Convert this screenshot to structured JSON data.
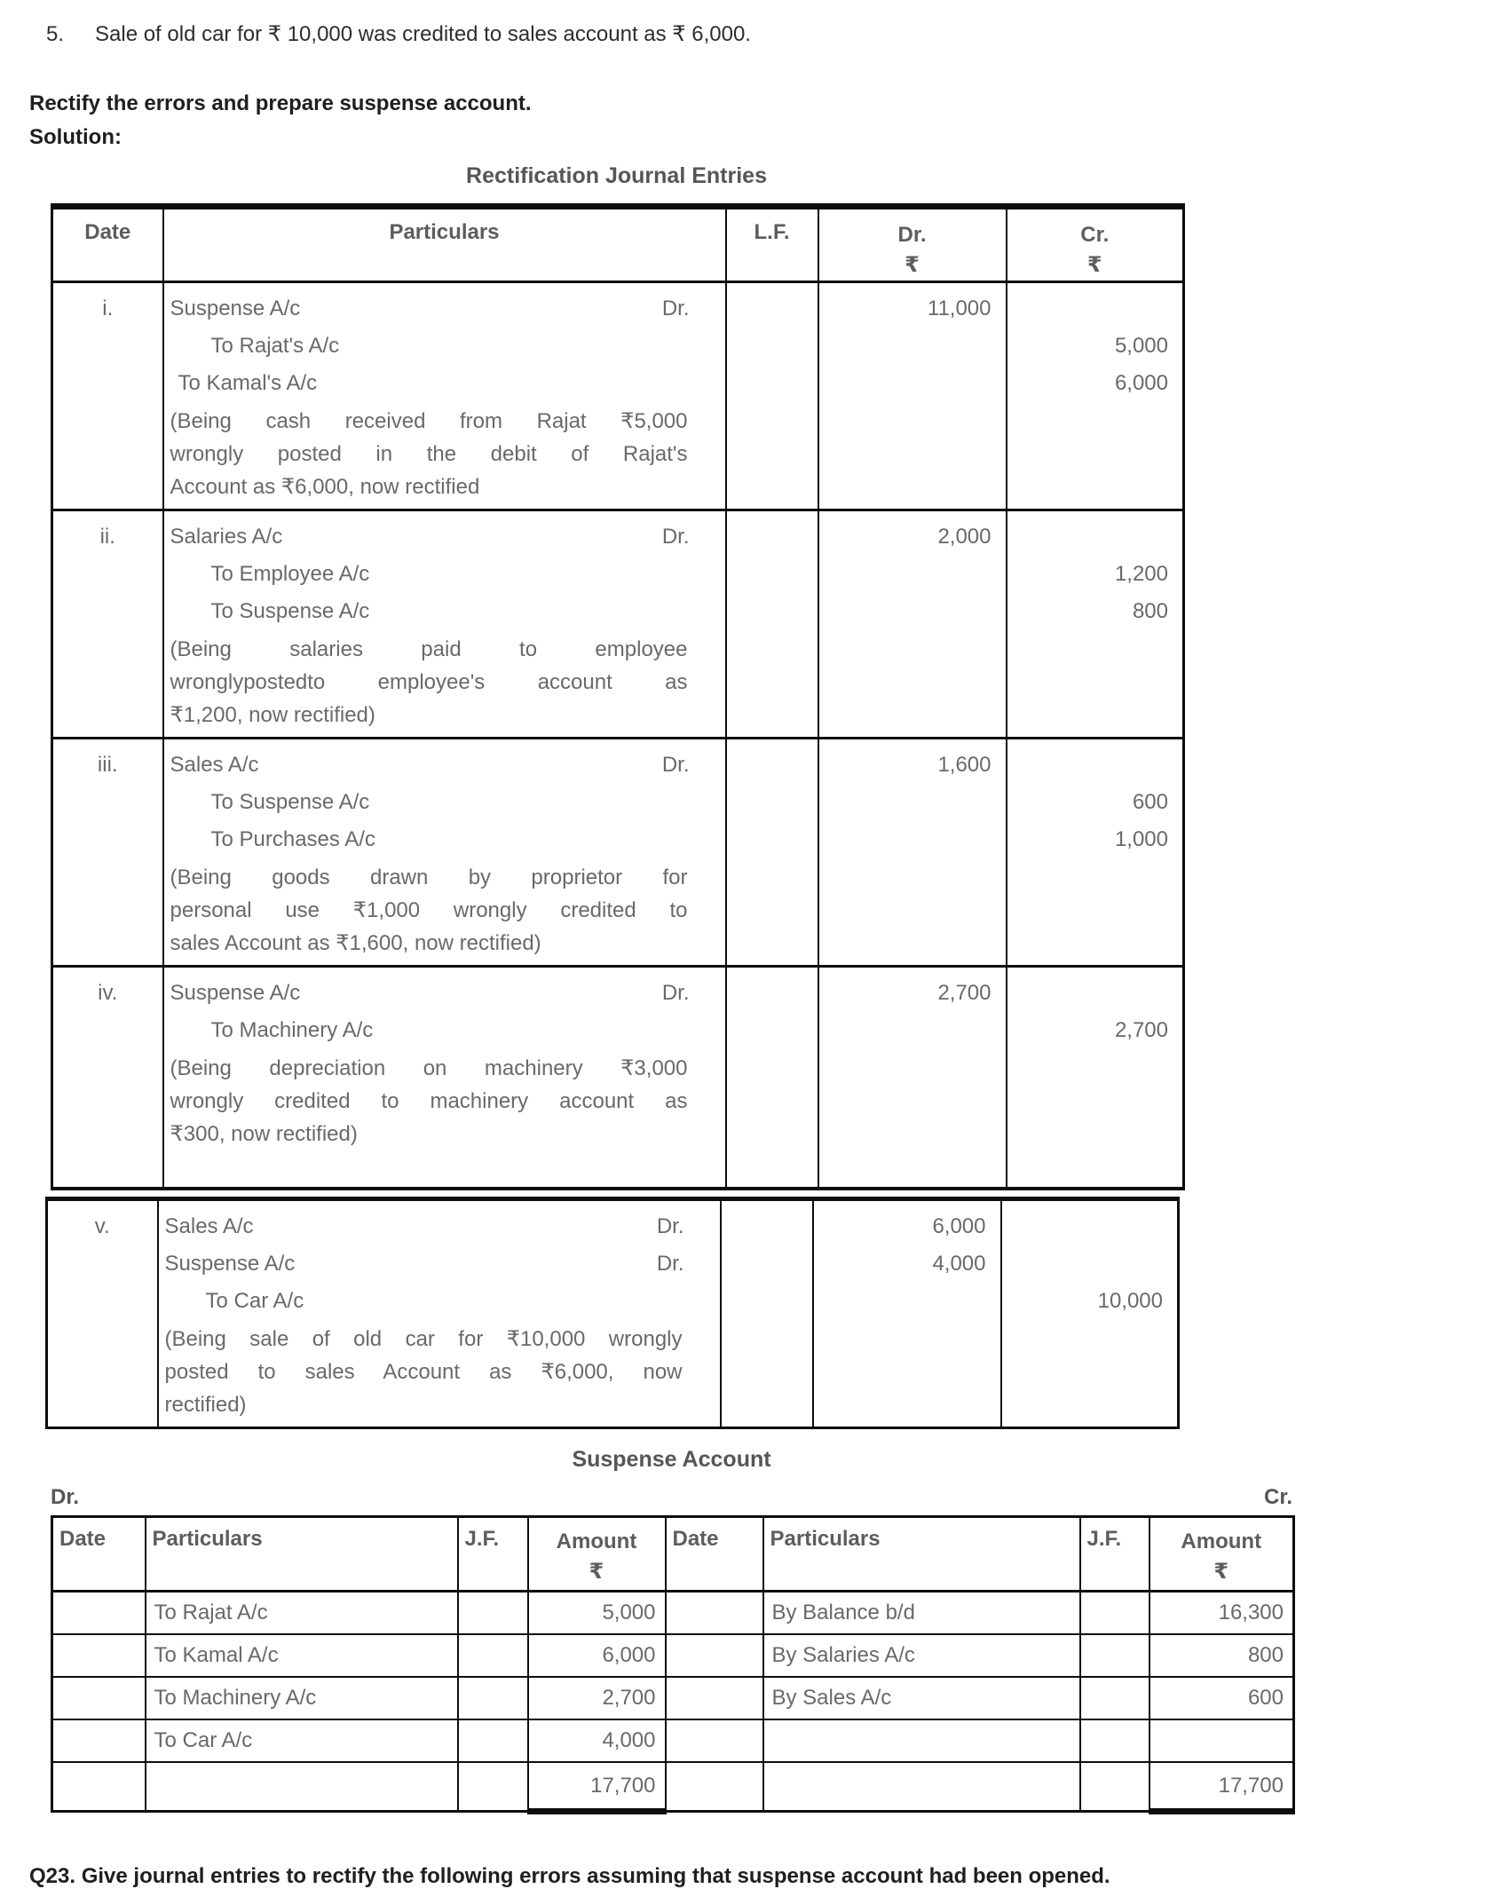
{
  "intro": {
    "item_number": "5.",
    "item_text": "Sale of old car for ₹ 10,000 was credited to sales account as ₹ 6,000.",
    "instruction": "Rectify the errors and prepare suspense account.",
    "solution_label": "Solution:"
  },
  "journal": {
    "title": "Rectification Journal Entries",
    "headers": {
      "date": "Date",
      "particulars": "Particulars",
      "lf": "L.F.",
      "dr": "Dr.",
      "cr": "Cr.",
      "currency": "₹"
    },
    "entries": [
      {
        "index": "i.",
        "section": 1,
        "lines": [
          {
            "text": "Suspense A/c",
            "dr_suffix": "Dr.",
            "indent": 0,
            "dr": "11,000",
            "cr": ""
          },
          {
            "text": "To Rajat's A/c",
            "dr_suffix": "",
            "indent": 2,
            "dr": "",
            "cr": "5,000"
          },
          {
            "text": "To Kamal's A/c",
            "dr_suffix": "",
            "indent": 1,
            "dr": "",
            "cr": "6,000"
          }
        ],
        "narration_lines": [
          "(Being cash received from Rajat ₹5,000",
          "wrongly posted in the debit of Rajat's",
          "Account as ₹6,000, now rectified"
        ]
      },
      {
        "index": "ii.",
        "section": 1,
        "lines": [
          {
            "text": "Salaries A/c",
            "dr_suffix": "Dr.",
            "indent": 0,
            "dr": "2,000",
            "cr": ""
          },
          {
            "text": "To Employee A/c",
            "dr_suffix": "",
            "indent": 2,
            "dr": "",
            "cr": "1,200"
          },
          {
            "text": "To Suspense A/c",
            "dr_suffix": "",
            "indent": 2,
            "dr": "",
            "cr": "800"
          }
        ],
        "narration_lines": [
          "(Being salaries paid to employee",
          "wronglypostedto employee's account as",
          "₹1,200, now rectified)"
        ]
      },
      {
        "index": "iii.",
        "section": 1,
        "lines": [
          {
            "text": "Sales A/c",
            "dr_suffix": "Dr.",
            "indent": 0,
            "dr": "1,600",
            "cr": ""
          },
          {
            "text": "To Suspense A/c",
            "dr_suffix": "",
            "indent": 2,
            "dr": "",
            "cr": "600"
          },
          {
            "text": "To Purchases A/c",
            "dr_suffix": "",
            "indent": 2,
            "dr": "",
            "cr": "1,000"
          }
        ],
        "narration_lines": [
          "(Being goods drawn by proprietor for",
          "personal use ₹1,000 wrongly credited to",
          "sales Account as ₹1,600, now rectified)"
        ]
      },
      {
        "index": "iv.",
        "section": 1,
        "lines": [
          {
            "text": "Suspense A/c",
            "dr_suffix": "Dr.",
            "indent": 0,
            "dr": "2,700",
            "cr": ""
          },
          {
            "text": "To Machinery A/c",
            "dr_suffix": "",
            "indent": 2,
            "dr": "",
            "cr": "2,700"
          }
        ],
        "narration_lines": [
          "(Being depreciation on machinery ₹3,000",
          "wrongly credited to machinery account as",
          "₹300, now rectified)"
        ]
      },
      {
        "index": "v.",
        "section": 2,
        "lines": [
          {
            "text": "Sales A/c",
            "dr_suffix": "Dr.",
            "indent": 0,
            "dr": "6,000",
            "cr": ""
          },
          {
            "text": "Suspense A/c",
            "dr_suffix": "Dr.",
            "indent": 0,
            "dr": "4,000",
            "cr": ""
          },
          {
            "text": "To Car A/c",
            "dr_suffix": "",
            "indent": 2,
            "dr": "",
            "cr": "10,000"
          }
        ],
        "narration_lines": [
          "(Being sale of old car for ₹10,000 wrongly",
          "posted to sales Account as ₹6,000, now",
          "rectified)"
        ]
      }
    ]
  },
  "suspense": {
    "title": "Suspense Account",
    "dr_label": "Dr.",
    "cr_label": "Cr.",
    "headers": {
      "date": "Date",
      "particulars": "Particulars",
      "jf": "J.F.",
      "amount": "Amount",
      "currency": "₹"
    },
    "rows": [
      {
        "debit_particulars": "To Rajat A/c",
        "debit_amount": "5,000",
        "credit_particulars": "By Balance b/d",
        "credit_amount": "16,300",
        "total": false
      },
      {
        "debit_particulars": "To Kamal A/c",
        "debit_amount": "6,000",
        "credit_particulars": "By Salaries A/c",
        "credit_amount": "800",
        "total": false
      },
      {
        "debit_particulars": "To Machinery A/c",
        "debit_amount": "2,700",
        "credit_particulars": "By Sales A/c",
        "credit_amount": "600",
        "total": false
      },
      {
        "debit_particulars": "To Car A/c",
        "debit_amount": "4,000",
        "credit_particulars": "",
        "credit_amount": "",
        "total": false
      },
      {
        "debit_particulars": "",
        "debit_amount": "17,700",
        "credit_particulars": "",
        "credit_amount": "17,700",
        "total": true
      }
    ]
  },
  "footer": {
    "q23_text": "Q23. Give journal entries to rectify the following errors assuming that suspense account had been opened."
  }
}
